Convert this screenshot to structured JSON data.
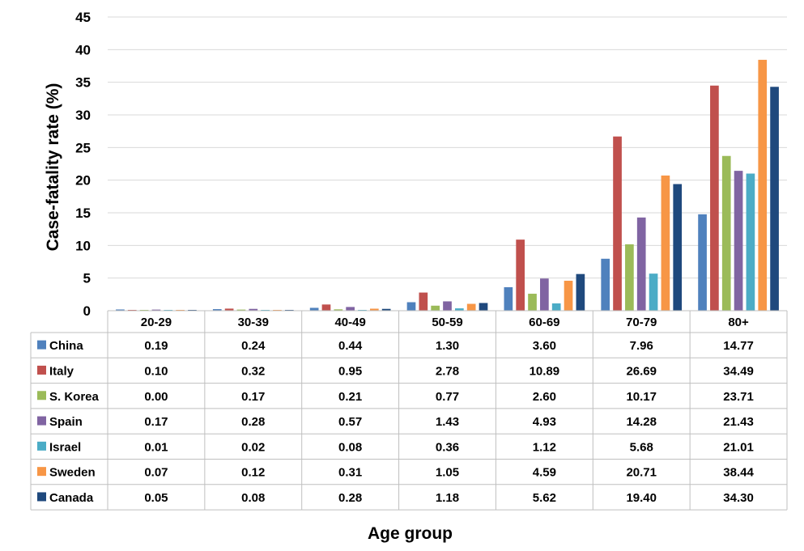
{
  "chart_data": {
    "type": "bar",
    "ylabel": "Case-fatality rate (%)",
    "xlabel": "Age group",
    "ylim": [
      0,
      45
    ],
    "yticks": [
      0,
      5,
      10,
      15,
      20,
      25,
      30,
      35,
      40,
      45
    ],
    "grid": "horizontal",
    "legend": "data-table",
    "categories": [
      "20-29",
      "30-39",
      "40-49",
      "50-59",
      "60-69",
      "70-79",
      "80+"
    ],
    "series": [
      {
        "name": "China",
        "color": "#4F81BD",
        "values": [
          0.19,
          0.24,
          0.44,
          1.3,
          3.6,
          7.96,
          14.77
        ],
        "labels": [
          "0.19",
          "0.24",
          "0.44",
          "1.30",
          "3.60",
          "7.96",
          "14.77"
        ]
      },
      {
        "name": "Italy",
        "color": "#C0504D",
        "values": [
          0.1,
          0.32,
          0.95,
          2.78,
          10.89,
          26.69,
          34.49
        ],
        "labels": [
          "0.10",
          "0.32",
          "0.95",
          "2.78",
          "10.89",
          "26.69",
          "34.49"
        ]
      },
      {
        "name": "S. Korea",
        "color": "#9BBB59",
        "values": [
          0.0,
          0.17,
          0.21,
          0.77,
          2.6,
          10.17,
          23.71
        ],
        "labels": [
          "0.00",
          "0.17",
          "0.21",
          "0.77",
          "2.60",
          "10.17",
          "23.71"
        ]
      },
      {
        "name": "Spain",
        "color": "#8064A2",
        "values": [
          0.17,
          0.28,
          0.57,
          1.43,
          4.93,
          14.28,
          21.43
        ],
        "labels": [
          "0.17",
          "0.28",
          "0.57",
          "1.43",
          "4.93",
          "14.28",
          "21.43"
        ]
      },
      {
        "name": "Israel",
        "color": "#4BACC6",
        "values": [
          0.01,
          0.02,
          0.08,
          0.36,
          1.12,
          5.68,
          21.01
        ],
        "labels": [
          "0.01",
          "0.02",
          "0.08",
          "0.36",
          "1.12",
          "5.68",
          "21.01"
        ]
      },
      {
        "name": "Sweden",
        "color": "#F79646",
        "values": [
          0.07,
          0.12,
          0.31,
          1.05,
          4.59,
          20.71,
          38.44
        ],
        "labels": [
          "0.07",
          "0.12",
          "0.31",
          "1.05",
          "4.59",
          "20.71",
          "38.44"
        ]
      },
      {
        "name": "Canada",
        "color": "#1F497D",
        "values": [
          0.05,
          0.08,
          0.28,
          1.18,
          5.62,
          19.4,
          34.3
        ],
        "labels": [
          "0.05",
          "0.08",
          "0.28",
          "1.18",
          "5.62",
          "19.40",
          "34.30"
        ]
      }
    ]
  }
}
